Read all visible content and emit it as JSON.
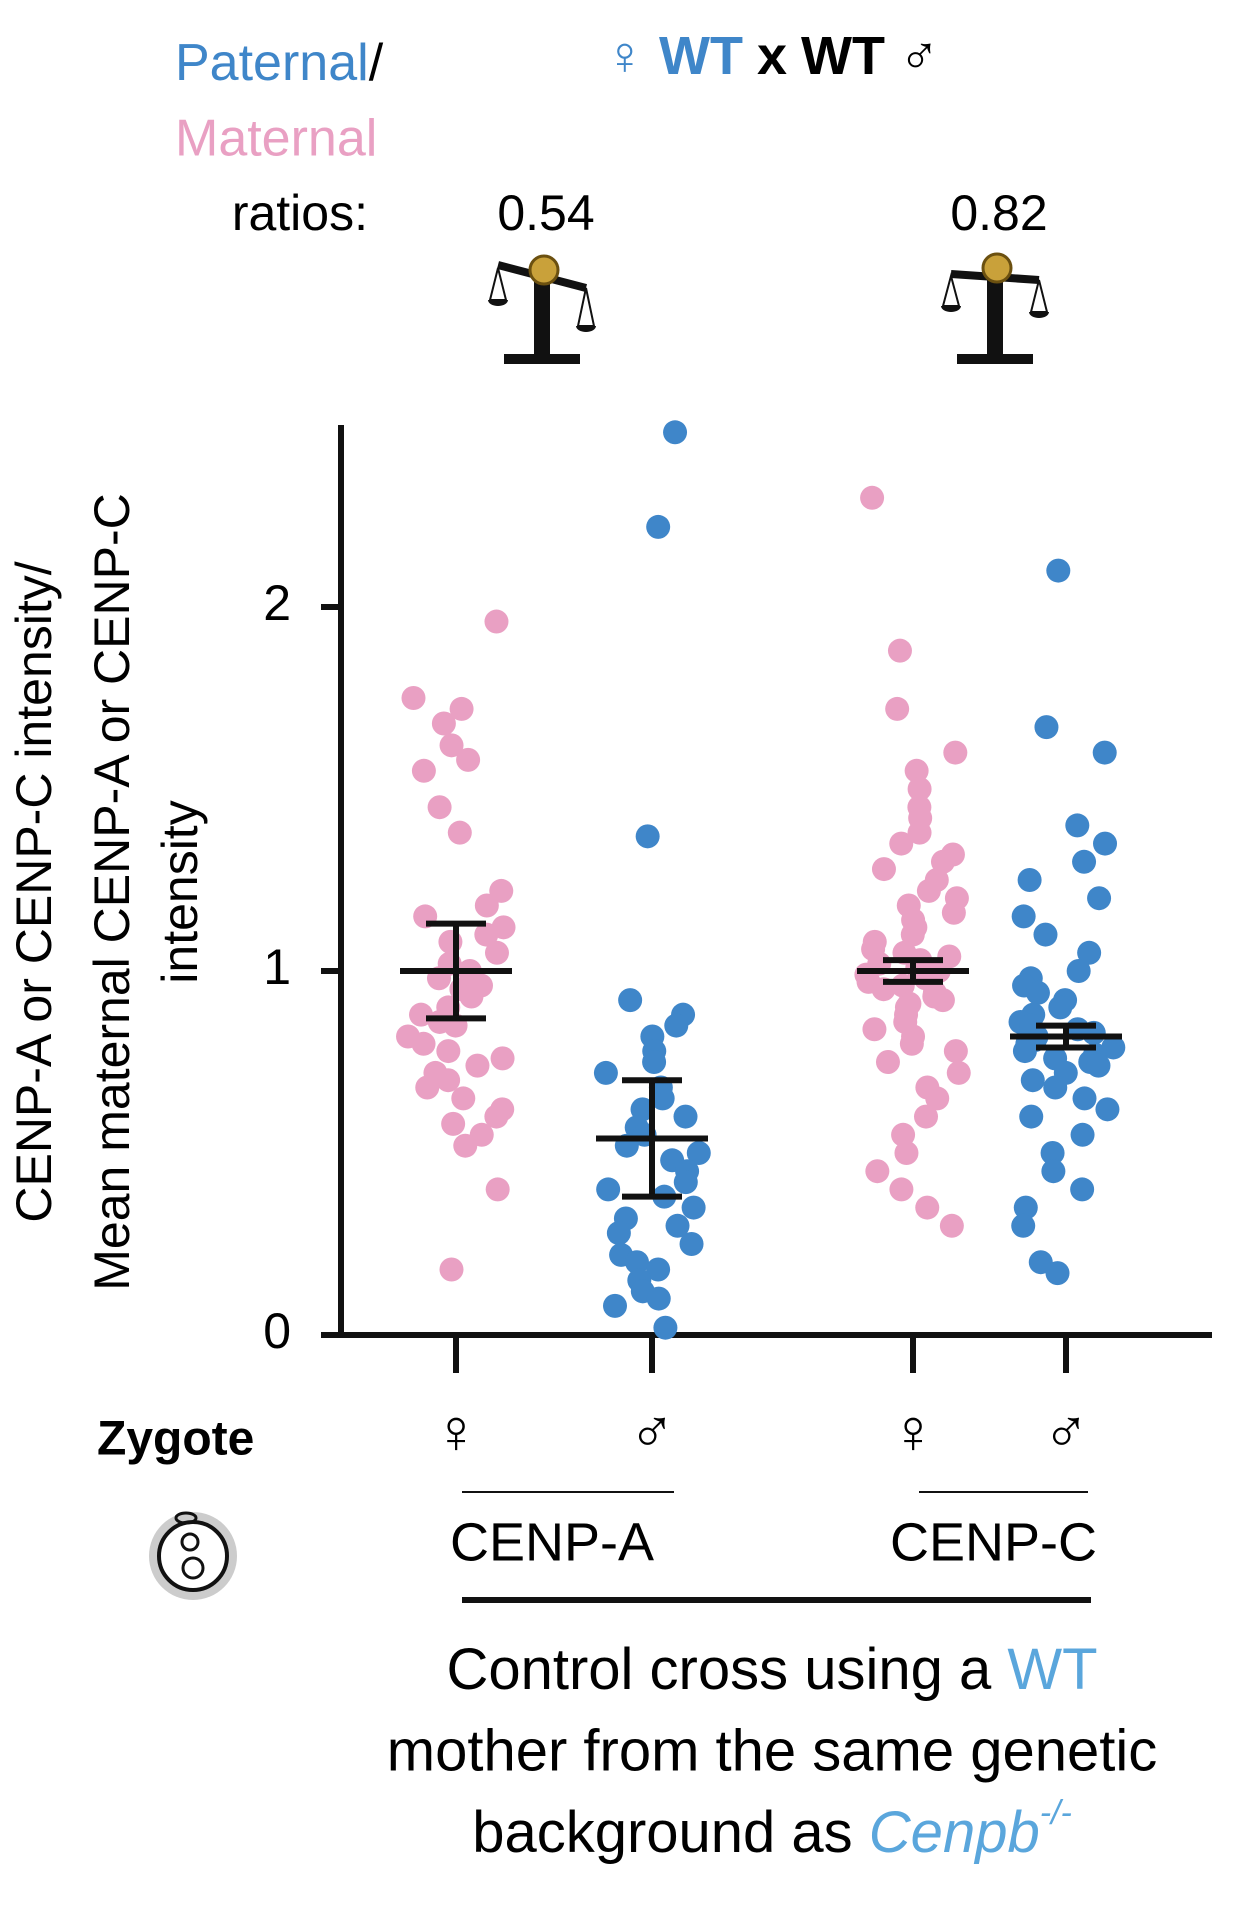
{
  "chart_data": {
    "type": "strip",
    "header": {
      "paternal": "Paternal",
      "slash": "/",
      "maternal": "Maternal",
      "ratios_label": "ratios:",
      "female_symbol": "♀",
      "female_wt": "WT",
      "cross": "x",
      "male_wt": "WT",
      "male_symbol": "♂"
    },
    "y_label": [
      "CENP-A or CENP-C intensity/",
      "Mean maternal CENP-A or CENP-C",
      "intensity"
    ],
    "row_label": "Zygote",
    "ylim": [
      0,
      2.5
    ],
    "yticks": [
      0,
      1,
      2
    ],
    "categories": [
      "♀",
      "♂",
      "♀",
      "♂"
    ],
    "groups": [
      {
        "label": "CENP-A",
        "ratio": 0.54
      },
      {
        "label": "CENP-C",
        "ratio": 0.82
      }
    ],
    "series": [
      {
        "color": "#e9a0c3",
        "mean": 1.0,
        "error": 0.13,
        "values": [
          1.96,
          1.75,
          1.72,
          1.68,
          1.62,
          1.58,
          1.55,
          1.45,
          1.38,
          1.22,
          1.18,
          1.15,
          1.12,
          1.1,
          1.08,
          1.05,
          1.02,
          1.0,
          0.98,
          0.96,
          0.95,
          0.93,
          0.9,
          0.88,
          0.86,
          0.85,
          0.82,
          0.8,
          0.78,
          0.76,
          0.74,
          0.72,
          0.7,
          0.68,
          0.65,
          0.62,
          0.6,
          0.58,
          0.55,
          0.52,
          0.4,
          0.18
        ]
      },
      {
        "color": "#3f86c9",
        "mean": 0.54,
        "error": 0.16,
        "values": [
          2.48,
          2.22,
          1.37,
          0.92,
          0.88,
          0.85,
          0.82,
          0.78,
          0.75,
          0.72,
          0.68,
          0.65,
          0.62,
          0.6,
          0.57,
          0.55,
          0.52,
          0.5,
          0.48,
          0.45,
          0.42,
          0.4,
          0.38,
          0.35,
          0.32,
          0.3,
          0.28,
          0.25,
          0.22,
          0.2,
          0.18,
          0.15,
          0.12,
          0.1,
          0.08,
          0.02
        ]
      },
      {
        "color": "#e9a0c3",
        "mean": 1.0,
        "error": 0.03,
        "values": [
          2.3,
          1.88,
          1.72,
          1.6,
          1.55,
          1.5,
          1.45,
          1.42,
          1.38,
          1.35,
          1.32,
          1.3,
          1.28,
          1.25,
          1.22,
          1.2,
          1.18,
          1.16,
          1.14,
          1.12,
          1.1,
          1.08,
          1.06,
          1.05,
          1.04,
          1.03,
          1.02,
          1.01,
          1.0,
          0.99,
          0.98,
          0.97,
          0.96,
          0.95,
          0.94,
          0.93,
          0.92,
          0.91,
          0.9,
          0.88,
          0.86,
          0.84,
          0.82,
          0.8,
          0.78,
          0.75,
          0.72,
          0.68,
          0.65,
          0.6,
          0.55,
          0.5,
          0.45,
          0.4,
          0.35,
          0.3
        ]
      },
      {
        "color": "#3f86c9",
        "mean": 0.82,
        "error": 0.03,
        "values": [
          2.1,
          1.67,
          1.6,
          1.4,
          1.35,
          1.3,
          1.25,
          1.2,
          1.15,
          1.1,
          1.05,
          1.0,
          0.98,
          0.96,
          0.94,
          0.92,
          0.9,
          0.88,
          0.86,
          0.85,
          0.84,
          0.83,
          0.82,
          0.81,
          0.8,
          0.79,
          0.78,
          0.77,
          0.76,
          0.75,
          0.74,
          0.72,
          0.7,
          0.68,
          0.65,
          0.62,
          0.6,
          0.55,
          0.5,
          0.45,
          0.4,
          0.35,
          0.3,
          0.2,
          0.17
        ]
      }
    ],
    "caption": {
      "line1": "Control cross using a ",
      "line1_wt": "WT",
      "line2": "mother from the same genetic",
      "line3": "background as ",
      "gene": "Cenpb",
      "gene_sup": "-/-"
    }
  }
}
